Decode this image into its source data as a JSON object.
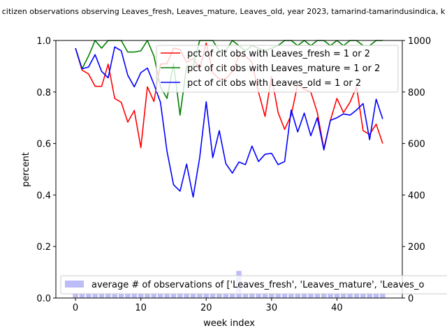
{
  "chart_data": {
    "type": "line",
    "title": "citizen observations observing Leaves_fresh, Leaves_mature, Leaves_old, year 2023, tamarind-tamarindusindica, k",
    "xlabel": "week index",
    "ylabel": "percent",
    "xlim": [
      -3,
      50
    ],
    "ylim": [
      0,
      1.0
    ],
    "y2lim": [
      0,
      1000
    ],
    "x_ticks": [
      "0",
      "10",
      "20",
      "30",
      "40"
    ],
    "y_ticks": [
      "0.0",
      "0.2",
      "0.4",
      "0.6",
      "0.8",
      "1.0"
    ],
    "y2_ticks": [
      "0",
      "200",
      "400",
      "600",
      "800",
      "1000"
    ],
    "legend_position": "upper right",
    "bar_legend_position": "lower left",
    "x": [
      0,
      1,
      2,
      3,
      4,
      5,
      6,
      7,
      8,
      9,
      10,
      11,
      12,
      13,
      14,
      15,
      16,
      17,
      18,
      19,
      20,
      21,
      22,
      23,
      24,
      25,
      26,
      27,
      28,
      29,
      30,
      31,
      32,
      33,
      34,
      35,
      36,
      37,
      38,
      39,
      40,
      41,
      42,
      43,
      44,
      45,
      46,
      47
    ],
    "series": [
      {
        "name": "pct of cit obs with Leaves_fresh = 1 or 2",
        "color": "#ff0000",
        "values": [
          0.97,
          0.885,
          0.87,
          0.822,
          0.822,
          0.908,
          0.775,
          0.76,
          0.683,
          0.728,
          0.584,
          0.82,
          0.763,
          0.908,
          0.91,
          0.97,
          0.965,
          0.915,
          0.93,
          0.89,
          0.99,
          0.875,
          0.85,
          0.85,
          0.88,
          0.94,
          0.94,
          0.915,
          0.8,
          0.705,
          0.86,
          0.72,
          0.655,
          0.71,
          0.83,
          0.81,
          0.8,
          0.72,
          0.58,
          0.69,
          0.775,
          0.72,
          0.76,
          0.82,
          0.65,
          0.635,
          0.675,
          0.6
        ]
      },
      {
        "name": "pct of cit obs with Leaves_mature = 1 or 2",
        "color": "#008000",
        "values": [
          0.97,
          0.89,
          0.94,
          1.0,
          0.97,
          1.0,
          1.0,
          1.0,
          0.955,
          0.955,
          0.96,
          1.0,
          0.94,
          0.82,
          0.775,
          0.91,
          0.71,
          0.9,
          0.9,
          1.0,
          1.0,
          1.0,
          0.96,
          0.96,
          1.0,
          0.98,
          0.96,
          0.98,
          0.97,
          0.96,
          0.97,
          0.98,
          1.0,
          1.0,
          0.98,
          1.0,
          0.98,
          1.0,
          1.0,
          0.98,
          1.0,
          0.98,
          1.0,
          1.0,
          0.98,
          0.98,
          1.0,
          1.0
        ]
      },
      {
        "name": "pct of cit obs with Leaves_old = 1 or 2",
        "color": "#0000ff",
        "values": [
          0.97,
          0.89,
          0.897,
          0.945,
          0.88,
          0.855,
          0.975,
          0.96,
          0.865,
          0.82,
          0.875,
          0.893,
          0.83,
          0.76,
          0.57,
          0.44,
          0.415,
          0.52,
          0.392,
          0.545,
          0.762,
          0.545,
          0.65,
          0.522,
          0.485,
          0.528,
          0.518,
          0.59,
          0.53,
          0.558,
          0.562,
          0.518,
          0.53,
          0.73,
          0.645,
          0.718,
          0.63,
          0.7,
          0.575,
          0.69,
          0.7,
          0.715,
          0.71,
          0.73,
          0.755,
          0.615,
          0.772,
          0.695
        ]
      }
    ],
    "bar_series": {
      "name": "average # of observations of ['Leaves_fresh', 'Leaves_mature', 'Leaves_o",
      "color": "#bcbcf8",
      "axis": "right",
      "values": [
        20,
        20,
        20,
        20,
        20,
        20,
        20,
        20,
        20,
        20,
        20,
        20,
        20,
        20,
        20,
        20,
        20,
        20,
        20,
        20,
        20,
        20,
        20,
        20,
        20,
        105,
        20,
        20,
        20,
        20,
        20,
        20,
        20,
        20,
        20,
        20,
        20,
        20,
        20,
        20,
        20,
        20,
        20,
        20,
        20,
        20,
        20,
        20
      ]
    }
  }
}
